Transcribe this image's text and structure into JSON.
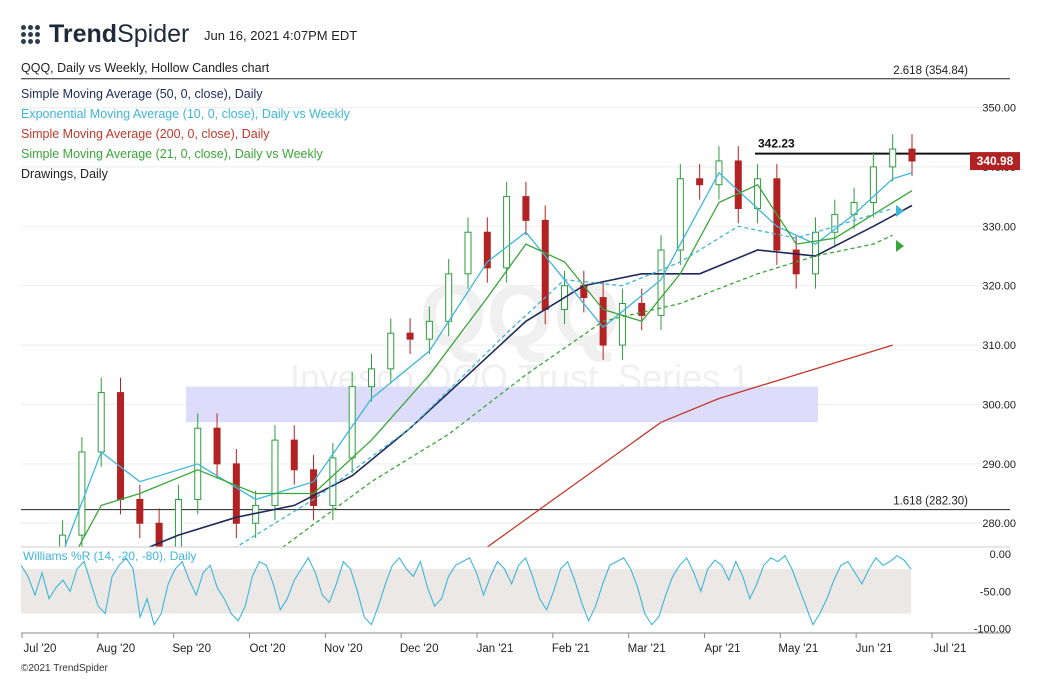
{
  "header": {
    "brand_bold": "Trend",
    "brand_light": "Spider",
    "timestamp": "Jun 16, 2021 4:07PM EDT",
    "copyright": "©2021 TrendSpider"
  },
  "legend": [
    {
      "text": "QQQ, Daily vs Weekly, Hollow Candles chart",
      "color": "#222222"
    },
    {
      "text": "Simple Moving Average (50, 0, close), Daily",
      "color": "#1f2a5a"
    },
    {
      "text": "Exponential Moving Average (10, 0, close), Daily vs Weekly",
      "color": "#3fb6d9"
    },
    {
      "text": "Simple Moving Average (200, 0, close), Daily",
      "color": "#c0392b"
    },
    {
      "text": "Simple Moving Average (21, 0, close), Daily vs Weekly",
      "color": "#3aa63a"
    },
    {
      "text": "Drawings, Daily",
      "color": "#222222"
    }
  ],
  "watermark": {
    "symbol": "QQQ",
    "name": "Invesco QQQ Trust, Series 1"
  },
  "chart_data": {
    "type": "line",
    "price_axis": {
      "ticks": [
        "350.00",
        "340.00",
        "330.00",
        "320.00",
        "310.00",
        "300.00",
        "290.00",
        "280.00"
      ],
      "tick_values": [
        350,
        340,
        330,
        320,
        310,
        300,
        290,
        280
      ],
      "ylim": [
        276,
        358
      ]
    },
    "x_axis": {
      "labels": [
        "Jul '20",
        "Aug '20",
        "Sep '20",
        "Oct '20",
        "Nov '20",
        "Dec '20",
        "Jan '21",
        "Feb '21",
        "Mar '21",
        "Apr '21",
        "May '21",
        "Jun '21",
        "Jul '21"
      ]
    },
    "last_price": {
      "value": 340.98,
      "label": "340.98",
      "color": "#b22222"
    },
    "annotations": [
      {
        "label": "2.618 (354.84)",
        "value": 354.84
      },
      {
        "label": "1.618 (282.30)",
        "value": 282.3
      },
      {
        "label": "342.23",
        "value": 342.23
      }
    ],
    "zone": {
      "from": "Sep '20",
      "to": "May '21",
      "low": 297,
      "high": 303,
      "color": "#d9d9fb"
    },
    "series": [
      {
        "key": "close",
        "points": [
          [
            0,
            268
          ],
          [
            1,
            272
          ],
          [
            2,
            278
          ],
          [
            3,
            292
          ],
          [
            4,
            302
          ],
          [
            5,
            284
          ],
          [
            6,
            280
          ],
          [
            7,
            275
          ],
          [
            8,
            284
          ],
          [
            9,
            296
          ],
          [
            10,
            290
          ],
          [
            11,
            280
          ],
          [
            12,
            283
          ],
          [
            13,
            294
          ],
          [
            14,
            289
          ],
          [
            15,
            283
          ],
          [
            16,
            291
          ],
          [
            17,
            303
          ],
          [
            18,
            306
          ],
          [
            19,
            312
          ],
          [
            20,
            311
          ],
          [
            21,
            314
          ],
          [
            22,
            322
          ],
          [
            23,
            329
          ],
          [
            24,
            323
          ],
          [
            25,
            335
          ],
          [
            26,
            331
          ],
          [
            27,
            316
          ],
          [
            28,
            320
          ],
          [
            29,
            318
          ],
          [
            30,
            310
          ],
          [
            31,
            317
          ],
          [
            32,
            315
          ],
          [
            33,
            326
          ],
          [
            34,
            338
          ],
          [
            35,
            337
          ],
          [
            36,
            341
          ],
          [
            37,
            333
          ],
          [
            38,
            338
          ],
          [
            39,
            326
          ],
          [
            40,
            322
          ],
          [
            41,
            329
          ],
          [
            42,
            332
          ],
          [
            43,
            334
          ],
          [
            44,
            340
          ],
          [
            45,
            343
          ],
          [
            46,
            341
          ]
        ]
      },
      {
        "key": "sma50",
        "color": "#1f2a5a",
        "points": [
          [
            5,
            274
          ],
          [
            8,
            278
          ],
          [
            11,
            281
          ],
          [
            14,
            283
          ],
          [
            17,
            288
          ],
          [
            20,
            296
          ],
          [
            23,
            305
          ],
          [
            26,
            314
          ],
          [
            29,
            320
          ],
          [
            32,
            322
          ],
          [
            35,
            322
          ],
          [
            38,
            326
          ],
          [
            41,
            325
          ],
          [
            44,
            330
          ],
          [
            46,
            333.5
          ]
        ]
      },
      {
        "key": "ema10",
        "color": "#3fb6d9",
        "points": [
          [
            2,
            275
          ],
          [
            4,
            292
          ],
          [
            6,
            287
          ],
          [
            9,
            290
          ],
          [
            12,
            284
          ],
          [
            15,
            287
          ],
          [
            18,
            301
          ],
          [
            21,
            309
          ],
          [
            24,
            324
          ],
          [
            26,
            329
          ],
          [
            28,
            321
          ],
          [
            30,
            313
          ],
          [
            33,
            321
          ],
          [
            36,
            339
          ],
          [
            39,
            330
          ],
          [
            41,
            327
          ],
          [
            43,
            332
          ],
          [
            45,
            338
          ],
          [
            46,
            339
          ]
        ]
      },
      {
        "key": "sma21",
        "color": "#3aa63a",
        "points": [
          [
            2,
            271
          ],
          [
            4,
            283
          ],
          [
            6,
            285
          ],
          [
            9,
            289
          ],
          [
            12,
            285
          ],
          [
            15,
            285
          ],
          [
            18,
            294
          ],
          [
            21,
            305
          ],
          [
            24,
            318
          ],
          [
            26,
            327
          ],
          [
            28,
            324
          ],
          [
            30,
            316
          ],
          [
            32,
            314
          ],
          [
            34,
            322
          ],
          [
            36,
            334
          ],
          [
            38,
            337
          ],
          [
            40,
            327
          ],
          [
            42,
            328
          ],
          [
            44,
            332
          ],
          [
            46,
            336
          ]
        ]
      },
      {
        "key": "ema_weekly",
        "color": "#3fb6d9",
        "dashed": true,
        "points": [
          [
            5,
            260
          ],
          [
            10,
            274
          ],
          [
            15,
            284
          ],
          [
            20,
            296
          ],
          [
            25,
            312
          ],
          [
            28,
            321
          ],
          [
            31,
            320
          ],
          [
            34,
            324
          ],
          [
            37,
            330
          ],
          [
            40,
            328
          ],
          [
            43,
            331
          ],
          [
            45,
            333
          ]
        ]
      },
      {
        "key": "sma_weekly",
        "color": "#3aa63a",
        "dashed": true,
        "points": [
          [
            8,
            262
          ],
          [
            13,
            275
          ],
          [
            18,
            287
          ],
          [
            22,
            295
          ],
          [
            26,
            305
          ],
          [
            30,
            314
          ],
          [
            34,
            317
          ],
          [
            38,
            322
          ],
          [
            41,
            325
          ],
          [
            44,
            327
          ],
          [
            45,
            328.5
          ]
        ]
      },
      {
        "key": "sma200",
        "color": "#c0392b",
        "points": [
          [
            24,
            276
          ],
          [
            27,
            283
          ],
          [
            30,
            290
          ],
          [
            33,
            297
          ],
          [
            36,
            301
          ],
          [
            39,
            304
          ],
          [
            42,
            307
          ],
          [
            45,
            310
          ]
        ]
      }
    ],
    "williams_r": {
      "label": "Williams %R (14, -20, -80), Daily",
      "ticks": [
        "0.00",
        "-50.00",
        "-100.00"
      ],
      "tick_values": [
        0,
        -50,
        -100
      ],
      "ylim": [
        -105,
        3
      ],
      "band": [
        -20,
        -80
      ],
      "color": "#3fb6d9",
      "values": [
        -15,
        -30,
        -55,
        -25,
        -60,
        -45,
        -35,
        -50,
        -20,
        -10,
        -40,
        -70,
        -80,
        -30,
        -15,
        -5,
        -20,
        -85,
        -60,
        -95,
        -80,
        -40,
        -20,
        -10,
        -35,
        -55,
        -25,
        -15,
        -45,
        -60,
        -80,
        -90,
        -70,
        -30,
        -10,
        -15,
        -40,
        -75,
        -60,
        -35,
        -20,
        -5,
        -25,
        -55,
        -65,
        -40,
        -10,
        -20,
        -50,
        -85,
        -95,
        -70,
        -40,
        -15,
        -5,
        -20,
        -30,
        -10,
        -45,
        -70,
        -60,
        -30,
        -15,
        -10,
        -5,
        -25,
        -55,
        -30,
        -10,
        -20,
        -40,
        -15,
        -5,
        -30,
        -60,
        -75,
        -50,
        -20,
        -10,
        -35,
        -65,
        -90,
        -70,
        -40,
        -15,
        -10,
        -5,
        -20,
        -45,
        -80,
        -95,
        -85,
        -55,
        -30,
        -15,
        -5,
        -25,
        -50,
        -20,
        -8,
        -15,
        -35,
        -10,
        -30,
        -60,
        -40,
        -15,
        -5,
        -10,
        -2,
        -20,
        -45,
        -70,
        -95,
        -80,
        -60,
        -35,
        -15,
        -10,
        -25,
        -40,
        -20,
        -5,
        -15,
        -10,
        -2,
        -8,
        -20
      ]
    }
  }
}
